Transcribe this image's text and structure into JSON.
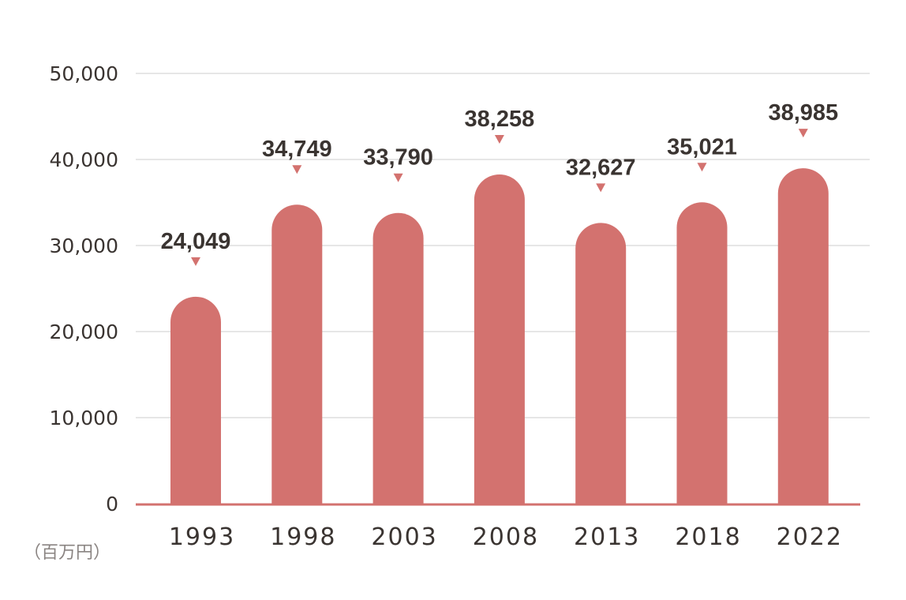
{
  "chart_data": {
    "type": "bar",
    "categories": [
      "1993",
      "1998",
      "2003",
      "2008",
      "2013",
      "2018",
      "2022"
    ],
    "values": [
      24049,
      34749,
      33790,
      38258,
      32627,
      35021,
      38985
    ],
    "value_labels": [
      "24,049",
      "34,749",
      "33,790",
      "38,258",
      "32,627",
      "35,021",
      "38,985"
    ],
    "y_ticks": [
      0,
      10000,
      20000,
      30000,
      40000,
      50000
    ],
    "y_tick_labels": [
      "0",
      "10,000",
      "20,000",
      "30,000",
      "40,000",
      "50,000"
    ],
    "ylim": [
      0,
      50000
    ],
    "unit_label": "（百万円）",
    "grid": true,
    "colors": {
      "bar": "#d3726f",
      "marker": "#d3726f",
      "grid": "#e6e6e6",
      "axis": "#d3726f",
      "text": "#3a3431",
      "unit_text": "#8a8482"
    }
  }
}
